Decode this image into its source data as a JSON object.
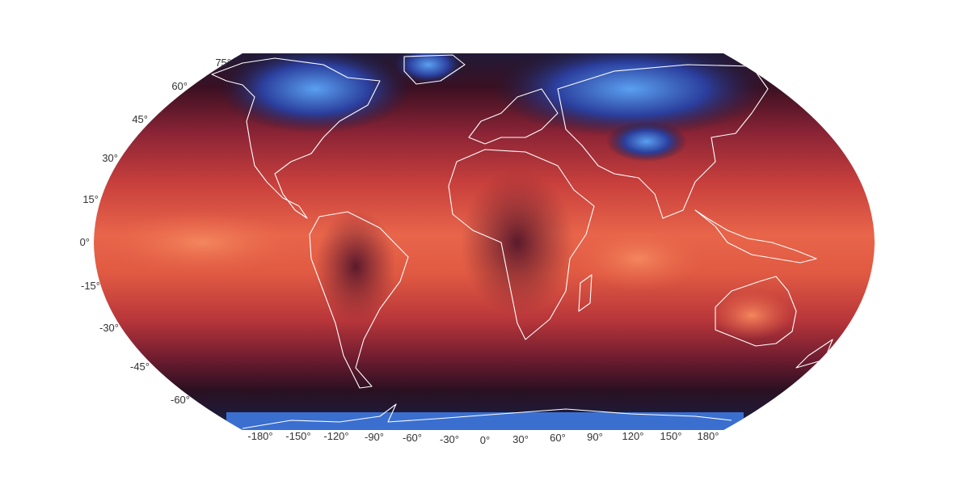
{
  "map": {
    "projection": "robinson-like",
    "colormap": [
      "#e8654a",
      "#c9403c",
      "#8c2436",
      "#3a1022",
      "#1d1b3a",
      "#2b3f9e",
      "#4a8fe6"
    ],
    "coastline_color": "#ffffff",
    "background": "#ffffff",
    "lat_labels": [
      "75°",
      "60°",
      "45°",
      "30°",
      "15°",
      "0°",
      "-15°",
      "-30°",
      "-45°",
      "-60°"
    ],
    "lon_labels": [
      "-180°",
      "-150°",
      "-120°",
      "-90°",
      "-60°",
      "-30°",
      "0°",
      "30°",
      "60°",
      "90°",
      "120°",
      "150°",
      "180°"
    ]
  }
}
